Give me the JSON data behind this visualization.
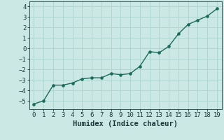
{
  "x": [
    0,
    1,
    2,
    3,
    4,
    5,
    6,
    7,
    8,
    9,
    10,
    11,
    12,
    13,
    14,
    15,
    16,
    17,
    18,
    19
  ],
  "y": [
    -5.3,
    -5.0,
    -3.5,
    -3.5,
    -3.3,
    -2.9,
    -2.8,
    -2.8,
    -2.4,
    -2.5,
    -2.4,
    -1.7,
    -0.3,
    -0.4,
    0.2,
    1.4,
    2.3,
    2.7,
    3.1,
    3.8
  ],
  "line_color": "#1a6b5a",
  "marker_color": "#1a6b5a",
  "bg_color": "#cce8e4",
  "grid_color": "#aad4ce",
  "xlabel": "Humidex (Indice chaleur)",
  "xlim": [
    -0.5,
    19.5
  ],
  "ylim": [
    -5.8,
    4.5
  ],
  "yticks": [
    -5,
    -4,
    -3,
    -2,
    -1,
    0,
    1,
    2,
    3,
    4
  ],
  "xticks": [
    0,
    1,
    2,
    3,
    4,
    5,
    6,
    7,
    8,
    9,
    10,
    11,
    12,
    13,
    14,
    15,
    16,
    17,
    18,
    19
  ],
  "font_color": "#1a3a3a",
  "font_size": 6.5,
  "xlabel_fontsize": 7.5,
  "linewidth": 1.0,
  "markersize": 2.8
}
